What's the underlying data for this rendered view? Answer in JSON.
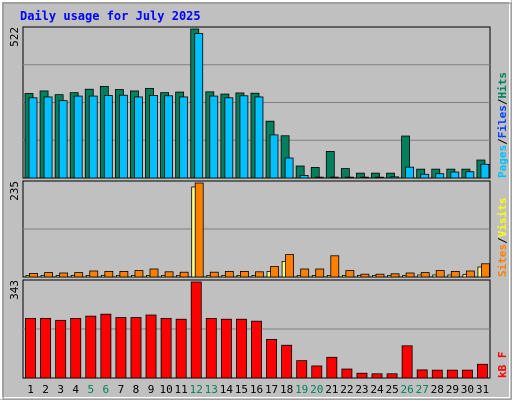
{
  "chart_data": {
    "type": "bar",
    "title": "Daily usage for July 2025",
    "categories": [
      "1",
      "2",
      "3",
      "4",
      "5",
      "6",
      "7",
      "8",
      "9",
      "10",
      "11",
      "12",
      "13",
      "14",
      "15",
      "16",
      "17",
      "18",
      "19",
      "20",
      "21",
      "22",
      "23",
      "24",
      "25",
      "26",
      "27",
      "28",
      "29",
      "30",
      "31"
    ],
    "weekend_days": [
      "5",
      "6",
      "12",
      "13",
      "19",
      "20",
      "26",
      "27"
    ],
    "weekday_label_color": "#000000",
    "weekend_label_color": "#00805c",
    "panels": [
      {
        "id": "hits",
        "ylim": [
          0,
          522
        ],
        "ytick_label": "522",
        "legend_label_color": "#000000",
        "series": [
          {
            "name": "Hits",
            "color": "#00805c",
            "values": [
              296,
              305,
              292,
              299,
              311,
              321,
              310,
              305,
              314,
              299,
              301,
              522,
              302,
              294,
              298,
              297,
              199,
              148,
              42,
              37,
              93,
              33,
              17,
              17,
              17,
              147,
              31,
              31,
              31,
              31,
              63
            ]
          },
          {
            "name": "Files",
            "color": "#00c0ff",
            "values": [
              281,
              284,
              271,
              287,
              287,
              289,
              290,
              284,
              289,
              288,
              284,
              506,
              287,
              281,
              288,
              284,
              151,
              70,
              9,
              3,
              3,
              3,
              3,
              3,
              4,
              38,
              13,
              15,
              21,
              22,
              48
            ]
          },
          {
            "name": "Pages",
            "color": "#00c0ff",
            "values": []
          }
        ]
      },
      {
        "id": "visits",
        "ylim": [
          0,
          235
        ],
        "ytick_label": "235",
        "legend_label_color": "#000000",
        "series": [
          {
            "name": "Visits",
            "color": "#ff8000",
            "values": [
              9,
              11,
              10,
              11,
              15,
              14,
              14,
              16,
              20,
              13,
              12,
              235,
              12,
              14,
              14,
              13,
              26,
              56,
              20,
              20,
              53,
              16,
              7,
              7,
              8,
              10,
              11,
              16,
              14,
              15,
              33
            ]
          },
          {
            "name": "Sites",
            "color": "#ffff80",
            "values": [
              4,
              4,
              4,
              4,
              4,
              4,
              4,
              4,
              4,
              4,
              4,
              225,
              4,
              4,
              4,
              4,
              14,
              39,
              4,
              4,
              4,
              4,
              4,
              4,
              4,
              4,
              5,
              5,
              5,
              6,
              25
            ]
          }
        ]
      },
      {
        "id": "kbf",
        "ylim": [
          0,
          343
        ],
        "ytick_label": "343",
        "legend_label_color": "#000000",
        "series": [
          {
            "name": "kB F",
            "color": "#ff0000",
            "values": [
              213,
              213,
              206,
              213,
              221,
              228,
              216,
              216,
              225,
              213,
              210,
              343,
              213,
              210,
              210,
              203,
              138,
              117,
              62,
              43,
              74,
              32,
              17,
              15,
              15,
              115,
              29,
              28,
              28,
              28,
              49
            ]
          }
        ]
      }
    ],
    "legend": {
      "hits_panel": [
        {
          "text": "Pages",
          "color": "#00c0ff"
        },
        {
          "text": "/",
          "color": "#000000"
        },
        {
          "text": "Files",
          "color": "#0040ff"
        },
        {
          "text": "/",
          "color": "#000000"
        },
        {
          "text": "Hits",
          "color": "#00805c"
        }
      ],
      "visits_panel": [
        {
          "text": "Sites",
          "color": "#ff8000"
        },
        {
          "text": "/",
          "color": "#000000"
        },
        {
          "text": "Visits",
          "color": "#ffff00"
        }
      ],
      "kbf_panel": [
        {
          "text": "kB F",
          "color": "#ff0000"
        }
      ]
    },
    "colors": {
      "background": "#c0c0c0",
      "title": "#0000ff",
      "grid": "#808080",
      "bar_outline": "#000000"
    },
    "grid": true
  }
}
